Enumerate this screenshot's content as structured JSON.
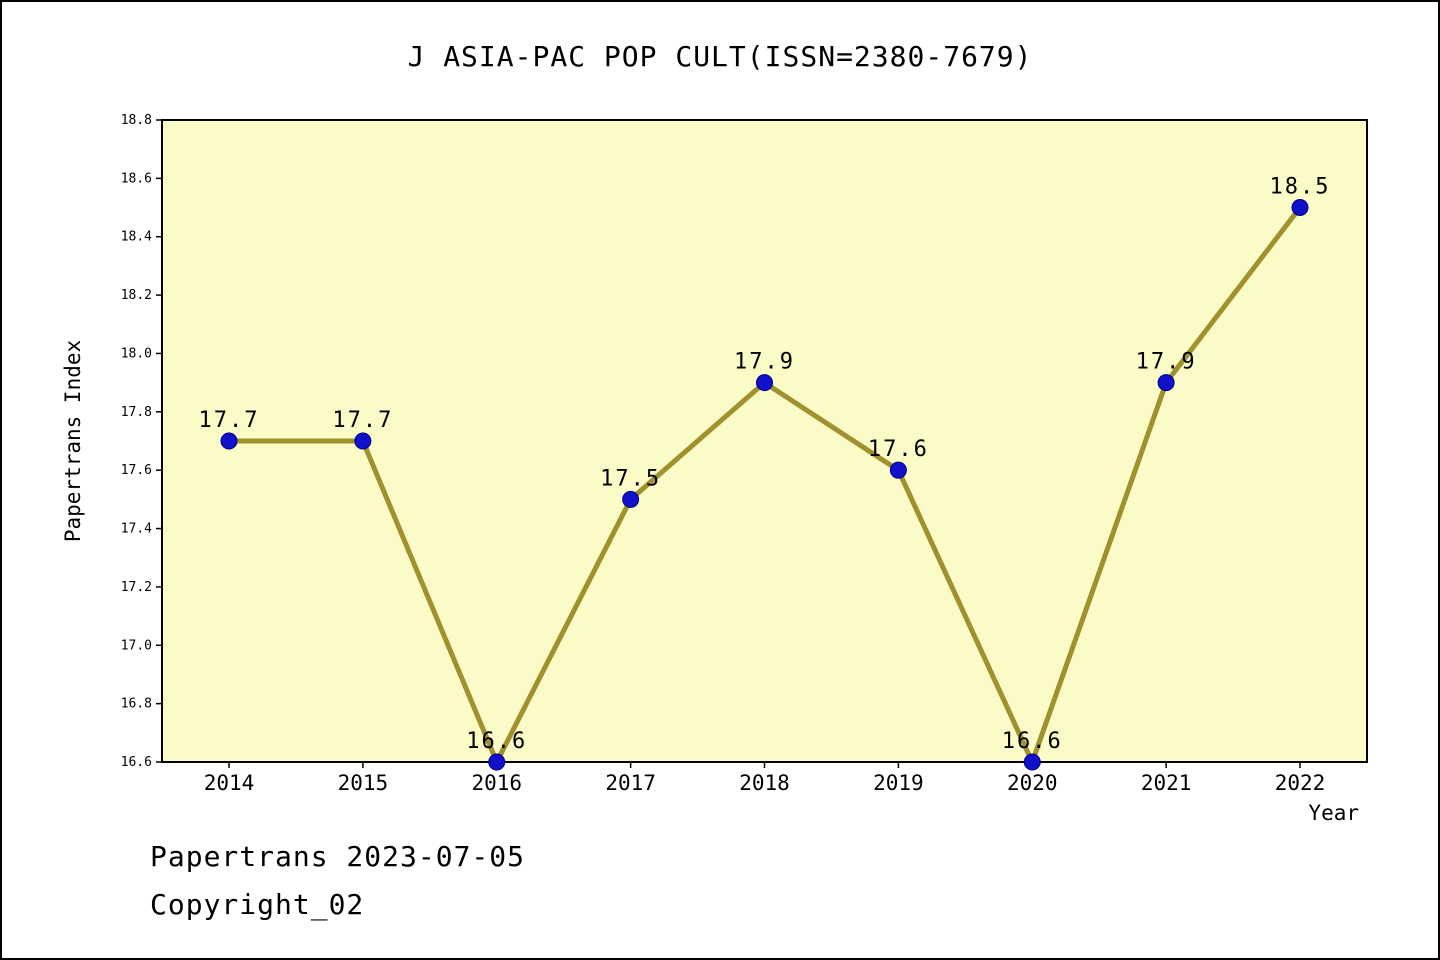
{
  "title": "J ASIA-PAC POP CULT(ISSN=2380-7679)",
  "footer": {
    "line1": "Papertrans 2023-07-05",
    "line2": "Copyright_02"
  },
  "chart_data": {
    "type": "line",
    "title": "J ASIA-PAC POP CULT(ISSN=2380-7679)",
    "x": [
      2014,
      2015,
      2016,
      2017,
      2018,
      2019,
      2020,
      2021,
      2022
    ],
    "series": [
      {
        "name": "Papertrans Index",
        "values": [
          17.7,
          17.7,
          16.6,
          17.5,
          17.9,
          17.6,
          16.6,
          17.9,
          18.5
        ]
      }
    ],
    "point_labels": [
      "17.7",
      "17.7",
      "16.6",
      "17.5",
      "17.9",
      "17.6",
      "16.6",
      "17.9",
      "18.5"
    ],
    "xlabel": "Year",
    "ylabel": "Papertrans Index",
    "ylim": [
      16.6,
      18.8
    ],
    "ytick_step": 0.2,
    "grid": false,
    "legend": "none",
    "colors": {
      "line": "#A0902E",
      "marker": "#1111CC",
      "marker_edge": "#000080",
      "plot_bg": "#FBFBC8",
      "frame": "#000000",
      "text": "#000000"
    }
  }
}
